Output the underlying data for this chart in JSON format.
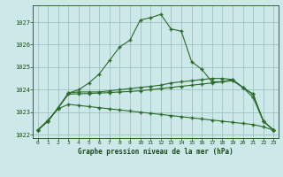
{
  "x": [
    0,
    1,
    2,
    3,
    4,
    5,
    6,
    7,
    8,
    9,
    10,
    11,
    12,
    13,
    14,
    15,
    16,
    17,
    18,
    19,
    20,
    21,
    22,
    23
  ],
  "line_peak": [
    1022.2,
    1022.6,
    1023.2,
    1023.85,
    1024.0,
    1024.3,
    1024.7,
    1025.3,
    1025.9,
    1026.2,
    1027.1,
    1027.2,
    1027.35,
    1026.7,
    1026.6,
    1025.25,
    1024.9,
    1024.35,
    1024.35,
    1024.45,
    1024.1,
    1023.65,
    1022.6,
    1022.2
  ],
  "line_flat_a": [
    1022.2,
    1022.6,
    1023.2,
    1023.85,
    1023.9,
    1023.9,
    1023.9,
    1023.95,
    1024.0,
    1024.05,
    1024.1,
    1024.15,
    1024.2,
    1024.3,
    1024.35,
    1024.4,
    1024.45,
    1024.5,
    1024.5,
    1024.45,
    1024.1,
    1023.8,
    1022.6,
    1022.2
  ],
  "line_flat_b": [
    1022.2,
    1022.6,
    1023.2,
    1023.8,
    1023.82,
    1023.83,
    1023.85,
    1023.87,
    1023.9,
    1023.92,
    1023.95,
    1024.0,
    1024.05,
    1024.1,
    1024.15,
    1024.2,
    1024.25,
    1024.3,
    1024.35,
    1024.4,
    1024.1,
    1023.8,
    1022.6,
    1022.2
  ],
  "line_declining": [
    1022.2,
    1022.65,
    1023.15,
    1023.35,
    1023.3,
    1023.25,
    1023.2,
    1023.15,
    1023.1,
    1023.05,
    1023.0,
    1022.95,
    1022.9,
    1022.85,
    1022.8,
    1022.75,
    1022.7,
    1022.65,
    1022.6,
    1022.55,
    1022.5,
    1022.45,
    1022.35,
    1022.2
  ],
  "bg_color": "#cce8e8",
  "grid_color": "#99bbbb",
  "line_color": "#2a6b2a",
  "xlabel": "Graphe pression niveau de la mer (hPa)",
  "ylim_min": 1021.85,
  "ylim_max": 1027.75,
  "yticks": [
    1022,
    1023,
    1024,
    1025,
    1026,
    1027
  ],
  "xticks": [
    0,
    1,
    2,
    3,
    4,
    5,
    6,
    7,
    8,
    9,
    10,
    11,
    12,
    13,
    14,
    15,
    16,
    17,
    18,
    19,
    20,
    21,
    22,
    23
  ]
}
